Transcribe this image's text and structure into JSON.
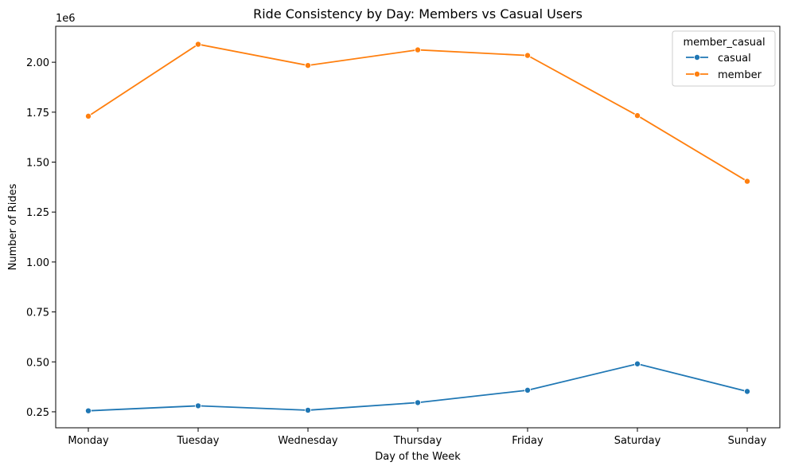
{
  "chart_data": {
    "type": "line",
    "title": "Ride Consistency by Day: Members vs Casual Users",
    "xlabel": "Day of the Week",
    "ylabel": "Number of Rides",
    "y_offset_label": "1e6",
    "categories": [
      "Monday",
      "Tuesday",
      "Wednesday",
      "Thursday",
      "Friday",
      "Saturday",
      "Sunday"
    ],
    "y_ticks": [
      0.25,
      0.5,
      0.75,
      1.0,
      1.25,
      1.5,
      1.75,
      2.0
    ],
    "y_tick_labels": [
      "0.25",
      "0.50",
      "0.75",
      "1.00",
      "1.25",
      "1.50",
      "1.75",
      "2.00"
    ],
    "ylim": [
      0.17,
      2.18
    ],
    "grid": false,
    "legend": {
      "title": "member_casual",
      "placement": "top-right"
    },
    "series": [
      {
        "name": "casual",
        "color": "#1f77b4",
        "values": [
          0.255,
          0.28,
          0.258,
          0.296,
          0.358,
          0.49,
          0.352
        ]
      },
      {
        "name": "member",
        "color": "#ff7f0e",
        "values": [
          1.73,
          2.09,
          1.984,
          2.062,
          2.034,
          1.733,
          1.404
        ]
      }
    ]
  }
}
